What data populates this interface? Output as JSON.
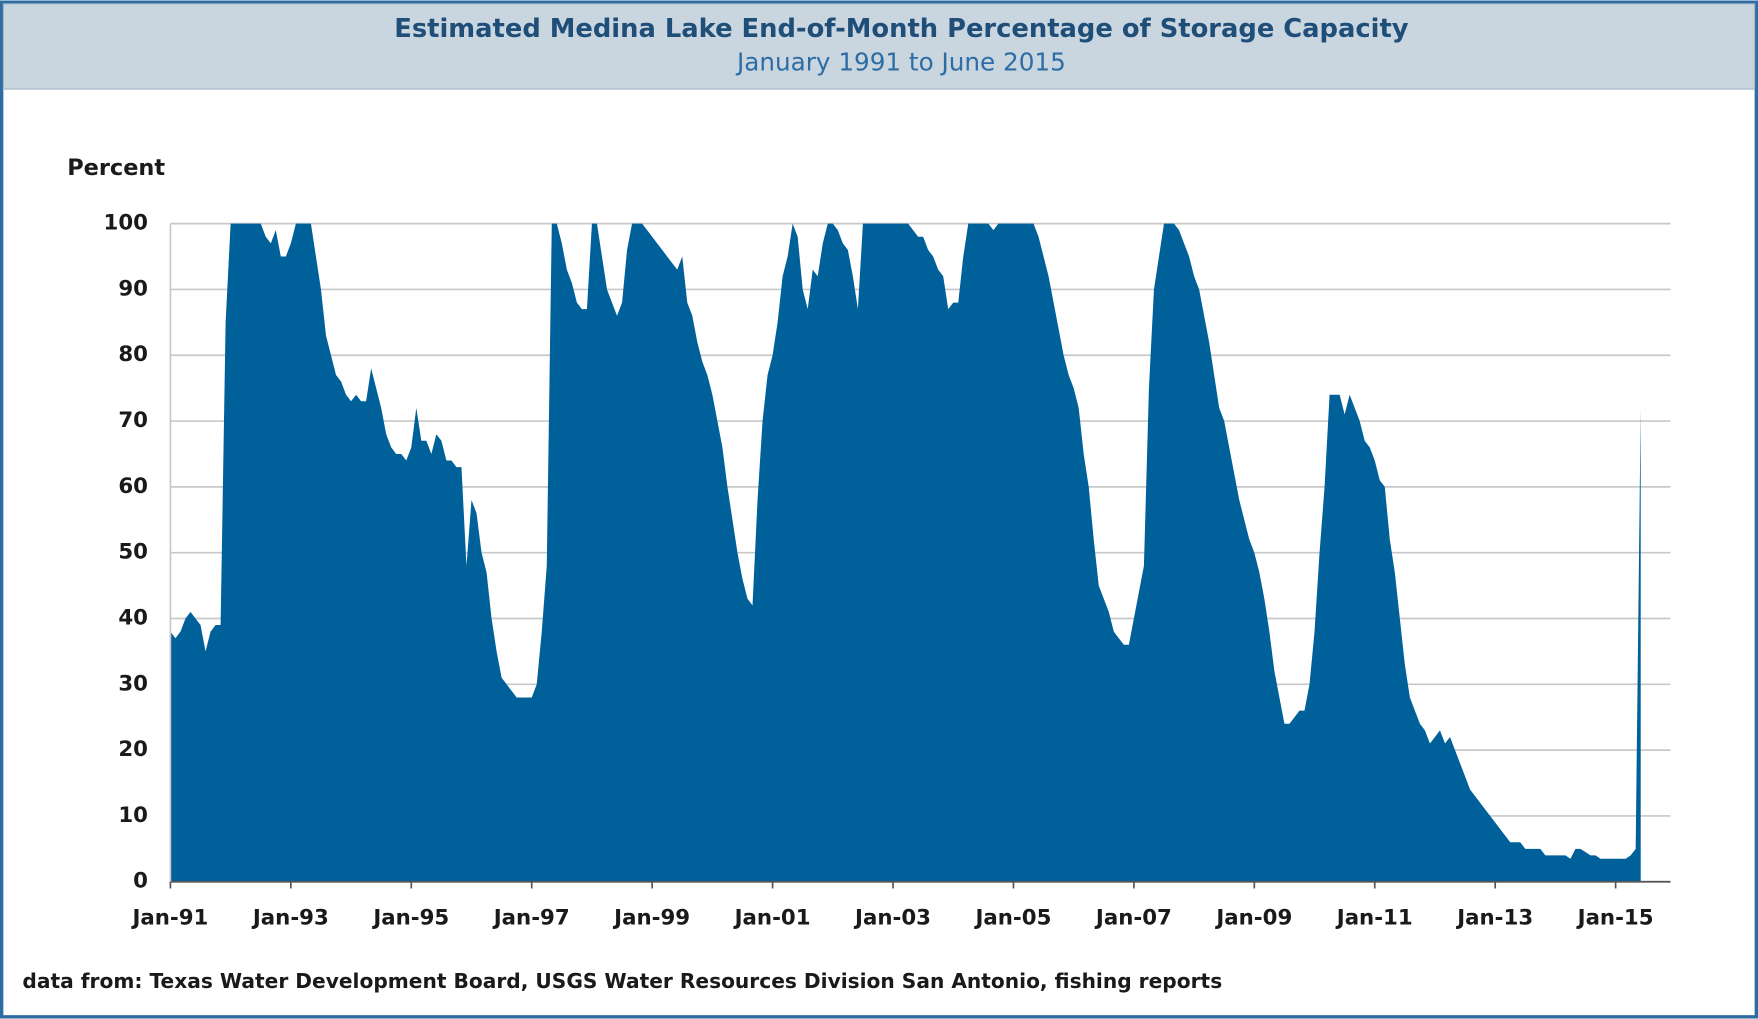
{
  "chart_data": {
    "type": "area",
    "title": "Estimated Medina Lake End-of-Month Percentage of Storage Capacity",
    "subtitle": "January 1991 to June 2015",
    "y_axis_label": "Percent",
    "source": "data from:  Texas Water Development Board, USGS Water Resources Division San Antonio, fishing reports",
    "color": "#00609a",
    "grid": true,
    "ylim": [
      0,
      100
    ],
    "yticks": [
      0,
      10,
      20,
      30,
      40,
      50,
      60,
      70,
      80,
      90,
      100
    ],
    "categories": [
      "Jan-91",
      null,
      null,
      null,
      null,
      null,
      null,
      null,
      null,
      null,
      null,
      null,
      null,
      null,
      null,
      null,
      null,
      null,
      null,
      null,
      null,
      null,
      null,
      null,
      "Jan-93",
      null,
      null,
      null,
      null,
      null,
      null,
      null,
      null,
      null,
      null,
      null,
      null,
      null,
      null,
      null,
      null,
      null,
      null,
      null,
      null,
      null,
      null,
      null,
      "Jan-95",
      null,
      null,
      null,
      null,
      null,
      null,
      null,
      null,
      null,
      null,
      null,
      null,
      null,
      null,
      null,
      null,
      null,
      null,
      null,
      null,
      null,
      null,
      null,
      "Jan-97",
      null,
      null,
      null,
      null,
      null,
      null,
      null,
      null,
      null,
      null,
      null,
      null,
      null,
      null,
      null,
      null,
      null,
      null,
      null,
      null,
      null,
      null,
      null,
      "Jan-99",
      null,
      null,
      null,
      null,
      null,
      null,
      null,
      null,
      null,
      null,
      null,
      null,
      null,
      null,
      null,
      null,
      null,
      null,
      null,
      null,
      null,
      null,
      null,
      "Jan-01",
      null,
      null,
      null,
      null,
      null,
      null,
      null,
      null,
      null,
      null,
      null,
      null,
      null,
      null,
      null,
      null,
      null,
      null,
      null,
      null,
      null,
      null,
      null,
      "Jan-03",
      null,
      null,
      null,
      null,
      null,
      null,
      null,
      null,
      null,
      null,
      null,
      null,
      null,
      null,
      null,
      null,
      null,
      null,
      null,
      null,
      null,
      null,
      null,
      "Jan-05",
      null,
      null,
      null,
      null,
      null,
      null,
      null,
      null,
      null,
      null,
      null,
      null,
      null,
      null,
      null,
      null,
      null,
      null,
      null,
      null,
      null,
      null,
      null,
      "Jan-07",
      null,
      null,
      null,
      null,
      null,
      null,
      null,
      null,
      null,
      null,
      null,
      null,
      null,
      null,
      null,
      null,
      null,
      null,
      null,
      null,
      null,
      null,
      null,
      "Jan-09",
      null,
      null,
      null,
      null,
      null,
      null,
      null,
      null,
      null,
      null,
      null,
      null,
      null,
      null,
      null,
      null,
      null,
      null,
      null,
      null,
      null,
      null,
      null,
      "Jan-11",
      null,
      null,
      null,
      null,
      null,
      null,
      null,
      null,
      null,
      null,
      null,
      null,
      null,
      null,
      null,
      null,
      null,
      null,
      null,
      null,
      null,
      null,
      null,
      "Jan-13",
      null,
      null,
      null,
      null,
      null,
      null,
      null,
      null,
      null,
      null,
      null,
      null,
      null,
      null,
      null,
      null,
      null,
      null,
      null,
      null,
      null,
      null,
      null,
      "Jan-15",
      null,
      null,
      null,
      null,
      null
    ],
    "values": [
      38,
      37,
      38,
      40,
      41,
      40,
      39,
      35,
      38,
      39,
      39,
      85,
      100,
      100,
      100,
      100,
      100,
      100,
      100,
      98,
      97,
      99,
      95,
      95,
      97,
      100,
      100,
      100,
      100,
      95,
      90,
      83,
      80,
      77,
      76,
      74,
      73,
      74,
      73,
      73,
      78,
      75,
      72,
      68,
      66,
      65,
      65,
      64,
      66,
      72,
      67,
      67,
      65,
      68,
      67,
      64,
      64,
      63,
      63,
      48,
      58,
      56,
      50,
      47,
      40,
      35,
      31,
      30,
      29,
      28,
      28,
      28,
      28,
      30,
      38,
      48,
      100,
      100,
      97,
      93,
      91,
      88,
      87,
      87,
      100,
      100,
      95,
      90,
      88,
      86,
      88,
      96,
      100,
      100,
      100,
      99,
      98,
      97,
      96,
      95,
      94,
      93,
      95,
      88,
      86,
      82,
      79,
      77,
      74,
      70,
      66,
      60,
      55,
      50,
      46,
      43,
      42,
      58,
      70,
      77,
      80,
      85,
      92,
      95,
      100,
      98,
      90,
      87,
      93,
      92,
      97,
      100,
      100,
      99,
      97,
      96,
      92,
      87,
      100,
      100,
      100,
      100,
      100,
      100,
      100,
      100,
      100,
      100,
      99,
      98,
      98,
      96,
      95,
      93,
      92,
      87,
      88,
      88,
      95,
      100,
      100,
      100,
      100,
      100,
      99,
      100,
      100,
      100,
      100,
      100,
      100,
      100,
      100,
      98,
      95,
      92,
      88,
      84,
      80,
      77,
      75,
      72,
      65,
      60,
      52,
      45,
      43,
      41,
      38,
      37,
      36,
      36,
      40,
      44,
      48,
      75,
      90,
      95,
      100,
      100,
      100,
      99,
      97,
      95,
      92,
      90,
      86,
      82,
      77,
      72,
      70,
      66,
      62,
      58,
      55,
      52,
      50,
      47,
      43,
      38,
      32,
      28,
      24,
      24,
      25,
      26,
      26,
      30,
      38,
      50,
      60,
      74,
      74,
      74,
      71,
      74,
      72,
      70,
      67,
      66,
      64,
      61,
      60,
      52,
      47,
      40,
      33,
      28,
      26,
      24,
      23,
      21,
      22,
      23,
      21,
      22,
      20,
      18,
      16,
      14,
      13,
      12,
      11,
      10,
      9,
      8,
      7,
      6,
      6,
      6,
      5,
      5,
      5,
      5,
      4,
      4,
      4,
      4,
      4,
      3.5,
      5,
      5,
      4.5,
      4,
      4,
      3.5,
      3.5,
      3.5,
      3.5,
      3.5,
      3.5,
      4,
      5,
      72
    ]
  }
}
